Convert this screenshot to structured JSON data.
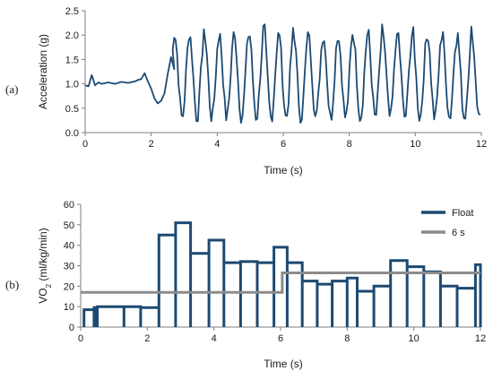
{
  "colors": {
    "float": "#1c4a72",
    "six_s": "#8c8c8c",
    "axis": "#7f7f7f"
  },
  "panel_a": {
    "label": "(a)",
    "chart_data": {
      "type": "line",
      "xlabel": "Time (s)",
      "ylabel": "Acceleration (g)",
      "xlim": [
        0,
        12
      ],
      "ylim": [
        0,
        2.5
      ],
      "xticks": [
        "0",
        "2",
        "4",
        "6",
        "8",
        "10",
        "12"
      ],
      "yticks": [
        "0.0",
        "0.5",
        "1.0",
        "1.5",
        "2.0",
        "2.5"
      ],
      "series": [
        {
          "x": [
            0,
            0.1,
            0.2,
            0.3,
            0.4,
            0.5,
            0.7,
            0.9,
            1.1,
            1.3,
            1.5,
            1.6,
            1.7,
            1.8,
            1.9,
            2.0,
            2.1,
            2.2,
            2.3,
            2.4,
            2.5,
            2.6,
            2.7
          ],
          "y": [
            0.97,
            0.95,
            1.18,
            0.97,
            1.03,
            1.0,
            1.03,
            1.0,
            1.04,
            1.02,
            1.05,
            1.08,
            1.1,
            1.22,
            1.05,
            0.9,
            0.7,
            0.6,
            0.65,
            0.8,
            1.2,
            1.55,
            1.3
          ]
        }
      ],
      "oscillation": {
        "start": 2.6,
        "end": 12,
        "period": 0.45,
        "peaks_approx": [
          1.9,
          2.2
        ],
        "troughs_approx": [
          0.3,
          0.2
        ]
      }
    }
  },
  "panel_b": {
    "label": "(b)",
    "chart_data": {
      "type": "line",
      "xlabel": "Time (s)",
      "ylabel": "VO₂ (ml/kg/min)",
      "xlim": [
        0,
        12
      ],
      "ylim": [
        0,
        60
      ],
      "xticks": [
        "0",
        "2",
        "4",
        "6",
        "8",
        "10",
        "12"
      ],
      "yticks": [
        "0",
        "10",
        "20",
        "30",
        "40",
        "50",
        "60"
      ],
      "legend": [
        {
          "name": "Float"
        },
        {
          "name": "6 s"
        }
      ],
      "series": [
        {
          "name": "Float",
          "type": "step",
          "edges": [
            0.1,
            0.4,
            0.45,
            0.5,
            1.3,
            1.8,
            2.35,
            2.85,
            3.3,
            3.85,
            4.3,
            4.8,
            5.3,
            5.8,
            6.2,
            6.65,
            7.1,
            7.55,
            8.0,
            8.3,
            8.8,
            9.3,
            9.8,
            10.3,
            10.8,
            11.3,
            11.85,
            12.0
          ],
          "values": [
            8.5,
            9.5,
            9.0,
            10,
            10,
            9.5,
            45,
            51,
            36,
            42.5,
            31.5,
            32,
            31.5,
            39,
            31.5,
            22.5,
            21,
            22.5,
            24,
            17.5,
            20,
            32.5,
            29.5,
            27,
            20,
            19,
            30.5,
            24
          ]
        },
        {
          "name": "6 s",
          "x": [
            0,
            6.05,
            6.05,
            12
          ],
          "y": [
            17,
            17,
            26.5,
            26.5
          ]
        }
      ]
    }
  }
}
